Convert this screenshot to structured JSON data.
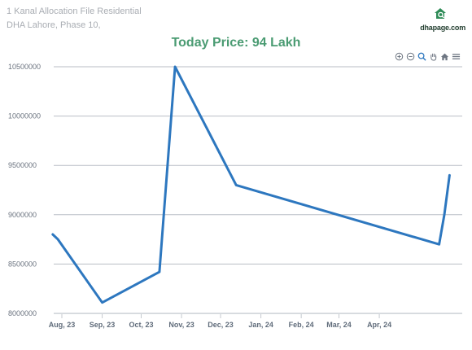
{
  "header": {
    "line1": "1 Kanal Allocation File Residential",
    "line2": "DHA Lahore, Phase 10,"
  },
  "brand": {
    "name": "dhapage.com",
    "icon": "house-magnifier-icon",
    "color": "#2e8b57"
  },
  "price_title": "Today Price: 94 Lakh",
  "toolbar": {
    "icons": [
      "zoom-in-icon",
      "zoom-out-icon",
      "magnify-icon",
      "pan-icon",
      "home-icon",
      "menu-icon"
    ]
  },
  "chart_data": {
    "type": "line",
    "title": "Today Price: 94 Lakh",
    "xlabel": "",
    "ylabel": "",
    "x_axis": "date",
    "xlim": [
      "2023-08-01",
      "2024-05-31"
    ],
    "ylim": [
      8000000,
      10500000
    ],
    "grid": "horizontal",
    "legend": "none",
    "line_color": "#2d77bf",
    "y_ticks": [
      {
        "value": 8000000,
        "label": "8000000"
      },
      {
        "value": 8500000,
        "label": "8500000"
      },
      {
        "value": 9000000,
        "label": "9000000"
      },
      {
        "value": 9500000,
        "label": "9500000"
      },
      {
        "value": 10000000,
        "label": "10000000"
      },
      {
        "value": 10500000,
        "label": "10500000"
      }
    ],
    "x_ticks": [
      {
        "date": "2023-08-01",
        "label": "Aug, 23"
      },
      {
        "date": "2023-09-01",
        "label": "Sep, 23"
      },
      {
        "date": "2023-10-01",
        "label": "Oct, 23"
      },
      {
        "date": "2023-11-01",
        "label": "Nov, 23"
      },
      {
        "date": "2023-12-01",
        "label": "Dec, 23"
      },
      {
        "date": "2024-01-01",
        "label": "Jan, 24"
      },
      {
        "date": "2024-02-01",
        "label": "Feb, 24"
      },
      {
        "date": "2024-03-01",
        "label": "Mar, 24"
      },
      {
        "date": "2024-04-01",
        "label": "Apr, 24"
      }
    ],
    "series": [
      {
        "points": [
          {
            "x": "2023-07-25",
            "y": 8800000
          },
          {
            "x": "2023-07-29",
            "y": 8750000
          },
          {
            "x": "2023-09-01",
            "y": 8110000
          },
          {
            "x": "2023-10-15",
            "y": 8420000
          },
          {
            "x": "2023-10-27",
            "y": 10500000
          },
          {
            "x": "2023-12-13",
            "y": 9300000
          },
          {
            "x": "2024-05-17",
            "y": 8700000
          },
          {
            "x": "2024-05-21",
            "y": 9000000
          },
          {
            "x": "2024-05-25",
            "y": 9400000
          }
        ]
      }
    ]
  }
}
